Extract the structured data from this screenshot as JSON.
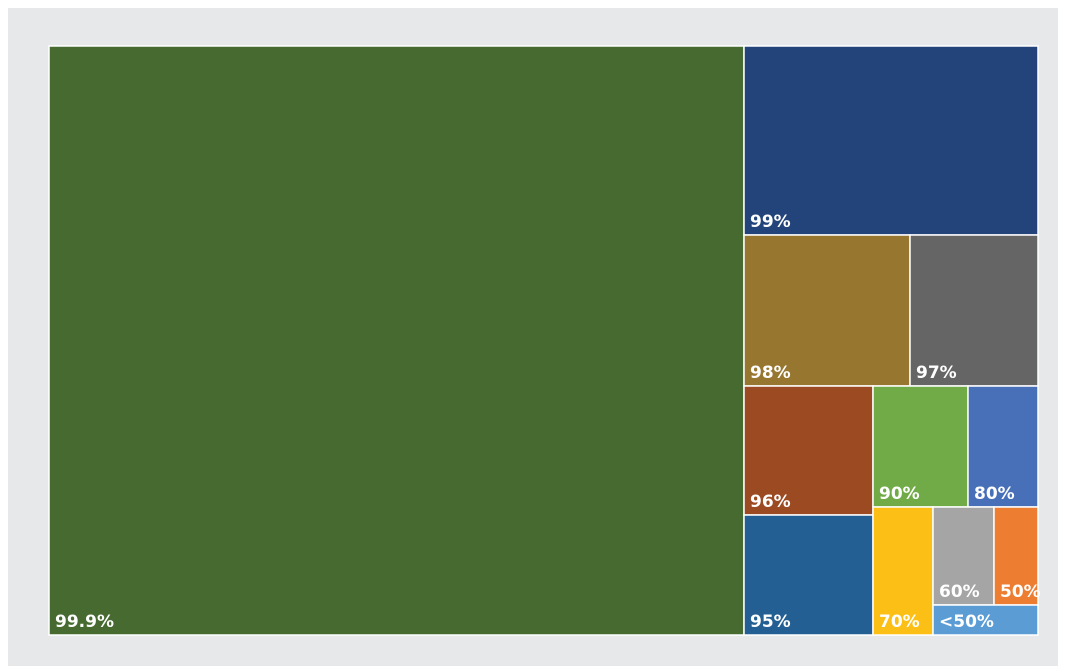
{
  "chart_data": {
    "type": "treemap",
    "cells": [
      {
        "label": "99.9%",
        "color": "#466a30"
      },
      {
        "label": "99%",
        "color": "#23447b"
      },
      {
        "label": "98%",
        "color": "#977630"
      },
      {
        "label": "97%",
        "color": "#646564"
      },
      {
        "label": "96%",
        "color": "#9b4a22"
      },
      {
        "label": "90%",
        "color": "#70ab47"
      },
      {
        "label": "80%",
        "color": "#4870b8"
      },
      {
        "label": "95%",
        "color": "#235f93"
      },
      {
        "label": "70%",
        "color": "#fbbf15"
      },
      {
        "label": "60%",
        "color": "#a5a5a5"
      },
      {
        "label": "50%",
        "color": "#ed7d31"
      },
      {
        "label": "<50%",
        "color": "#5b9cd5"
      }
    ]
  }
}
